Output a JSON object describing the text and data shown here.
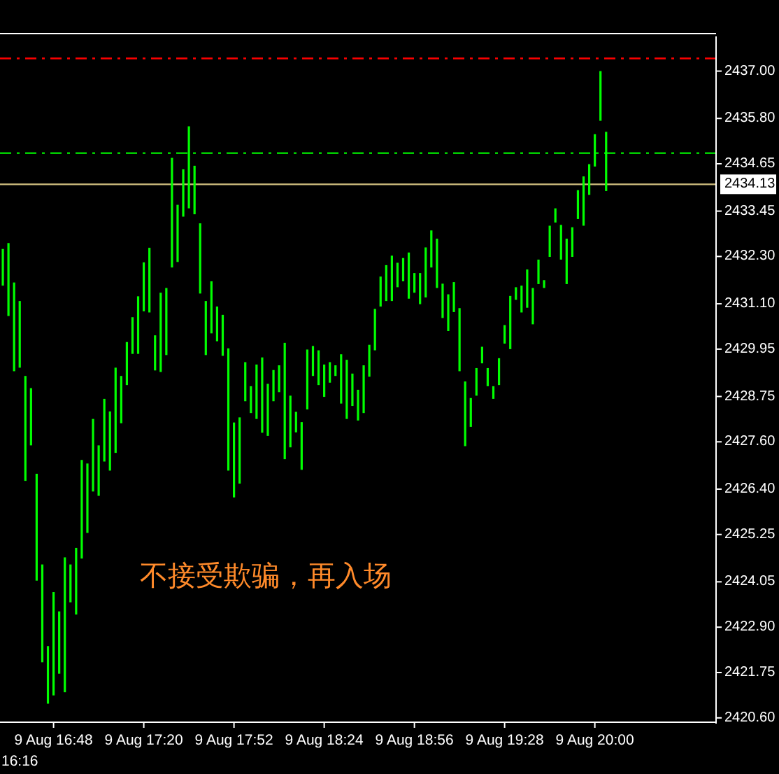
{
  "chart_data": {
    "type": "bar",
    "color": "#00ff00",
    "categories": [
      null,
      null,
      null,
      null,
      null,
      null,
      null,
      null,
      null,
      "9 Aug 16:48",
      null,
      null,
      null,
      null,
      null,
      null,
      null,
      null,
      null,
      null,
      null,
      null,
      null,
      null,
      null,
      "9 Aug 17:20",
      null,
      null,
      null,
      null,
      null,
      null,
      null,
      null,
      null,
      null,
      null,
      null,
      null,
      null,
      null,
      "9 Aug 17:52",
      null,
      null,
      null,
      null,
      null,
      null,
      null,
      null,
      null,
      null,
      null,
      null,
      null,
      null,
      null,
      "9 Aug 18:24",
      null,
      null,
      null,
      null,
      null,
      null,
      null,
      null,
      null,
      null,
      null,
      null,
      null,
      null,
      null,
      "9 Aug 18:56",
      null,
      null,
      null,
      null,
      null,
      null,
      null,
      null,
      null,
      null,
      null,
      null,
      null,
      null,
      null,
      "9 Aug 19:28",
      null,
      null,
      null,
      null,
      null,
      null,
      null,
      null,
      null,
      null,
      null,
      null,
      null,
      null,
      null,
      "9 Aug 20:00",
      null,
      null,
      null,
      null,
      null,
      null,
      null,
      null,
      null,
      null,
      null,
      null,
      null,
      null,
      null,
      null,
      null,
      null,
      null,
      null,
      null
    ],
    "base": [
      2431.56,
      2430.79,
      2429.39,
      2429.48,
      2426.61,
      2427.51,
      2424.08,
      2422.01,
      2420.96,
      2421.17,
      2421.72,
      2421.25,
      2423.53,
      2423.22,
      2424.64,
      2425.29,
      2426.34,
      2426.23,
      2427.1,
      2426.87,
      2427.32,
      2428.07,
      2429.04,
      2429.83,
      2429.83,
      2430.91,
      2430.88,
      2429.41,
      2429.37,
      2429.8,
      2432.02,
      2432.16,
      2433.31,
      2433.52,
      2433.37,
      2431.36,
      2429.8,
      2430.35,
      2430.15,
      2429.78,
      2426.87,
      2426.19,
      2426.54,
      2428.63,
      2428.33,
      2428.18,
      2427.83,
      2427.75,
      2428.63,
      2428.86,
      2427.16,
      2427.46,
      2427.84,
      2426.89,
      2428.42,
      2429.27,
      2429.04,
      2428.74,
      2429.1,
      2429.27,
      2428.57,
      2428.18,
      2428.51,
      2428.14,
      2428.33,
      2429.25,
      2429.92,
      2431.03,
      2431.17,
      2431.17,
      2431.52,
      2431.67,
      2431.23,
      2431.38,
      2431.09,
      2431.26,
      2432.02,
      2431.5,
      2430.74,
      2430.41,
      2430.89,
      2429.39,
      2427.49,
      2427.98,
      2428.77,
      2429.59,
      2429.01,
      2428.69,
      2429.04,
      2430.09,
      2429.95,
      2431.2,
      2430.88,
      2431.0,
      2430.58,
      2431.6,
      2431.5,
      2432.29,
      2433.16,
      2432.22,
      2431.6,
      2432.29,
      2433.25,
      2433.08,
      2433.86,
      2434.58,
      2435.74,
      2433.96,
      null,
      null,
      null,
      null,
      null,
      null,
      null,
      null,
      null,
      null,
      null,
      null,
      null,
      null,
      null,
      null,
      null,
      null,
      null
    ],
    "values": [
      0.93,
      1.85,
      2.25,
      1.69,
      2.66,
      1.45,
      2.71,
      2.48,
      1.46,
      2.62,
      1.58,
      3.42,
      0.96,
      1.69,
      2.5,
      1.76,
      1.84,
      1.28,
      1.59,
      1.5,
      2.16,
      1.2,
      1.09,
      0.93,
      1.46,
      1.24,
      1.64,
      0.89,
      2.01,
      1.7,
      2.78,
      1.45,
      1.2,
      2.08,
      1.23,
      1.78,
      1.37,
      1.32,
      0.88,
      1.04,
      3.1,
      1.9,
      1.68,
      0.99,
      0.68,
      1.38,
      1.91,
      1.32,
      0.79,
      0.68,
      2.95,
      1.31,
      0.52,
      1.21,
      1.52,
      0.76,
      0.88,
      0.82,
      0.52,
      0.27,
      1.25,
      1.5,
      0.82,
      0.78,
      1.21,
      0.81,
      1.05,
      0.76,
      0.91,
      1.15,
      0.62,
      0.59,
      1.17,
      0.5,
      0.79,
      1.27,
      0.94,
      1.25,
      0.87,
      0.93,
      0.76,
      1.6,
      1.64,
      0.73,
      0.7,
      0.42,
      0.46,
      0.32,
      0.68,
      0.47,
      1.35,
      0.32,
      0.68,
      0.97,
      0.92,
      0.62,
      0.2,
      0.79,
      0.36,
      0.88,
      1.15,
      0.75,
      0.73,
      1.25,
      0.78,
      0.82,
      1.26,
      1.5,
      null,
      null,
      null,
      null,
      null,
      null,
      null,
      null,
      null,
      null,
      null,
      null,
      null,
      null,
      null,
      null,
      null,
      null,
      null
    ],
    "ylim": [
      2420.49,
      2437.88
    ],
    "yticks": [
      {
        "value": 2420.6,
        "label": "2420.60"
      },
      {
        "value": 2421.75,
        "label": "2421.75"
      },
      {
        "value": 2422.9,
        "label": "2422.90"
      },
      {
        "value": 2424.05,
        "label": "2424.05"
      },
      {
        "value": 2425.25,
        "label": "2425.25"
      },
      {
        "value": 2426.4,
        "label": "2426.40"
      },
      {
        "value": 2427.6,
        "label": "2427.60"
      },
      {
        "value": 2428.75,
        "label": "2428.75"
      },
      {
        "value": 2429.95,
        "label": "2429.95"
      },
      {
        "value": 2431.1,
        "label": "2431.10"
      },
      {
        "value": 2432.3,
        "label": "2432.30"
      },
      {
        "value": 2433.45,
        "label": "2433.45"
      },
      {
        "value": 2434.65,
        "label": "2434.65"
      },
      {
        "value": 2435.8,
        "label": "2435.80"
      },
      {
        "value": 2437,
        "label": "2437.00"
      }
    ],
    "ref_lines": [
      {
        "axis": "y",
        "value": 2437.32,
        "color": "#ff0000",
        "line_style": "dashed"
      },
      {
        "axis": "y",
        "value": 2434.92,
        "color": "#00cc00",
        "line_style": "dashed"
      },
      {
        "axis": "y",
        "value": 2434.13,
        "label": "2434.13",
        "color": "#d2c080",
        "line_style": "solid"
      }
    ],
    "annotations": [
      "不接受欺骗，再入场",
      "16:16"
    ]
  }
}
